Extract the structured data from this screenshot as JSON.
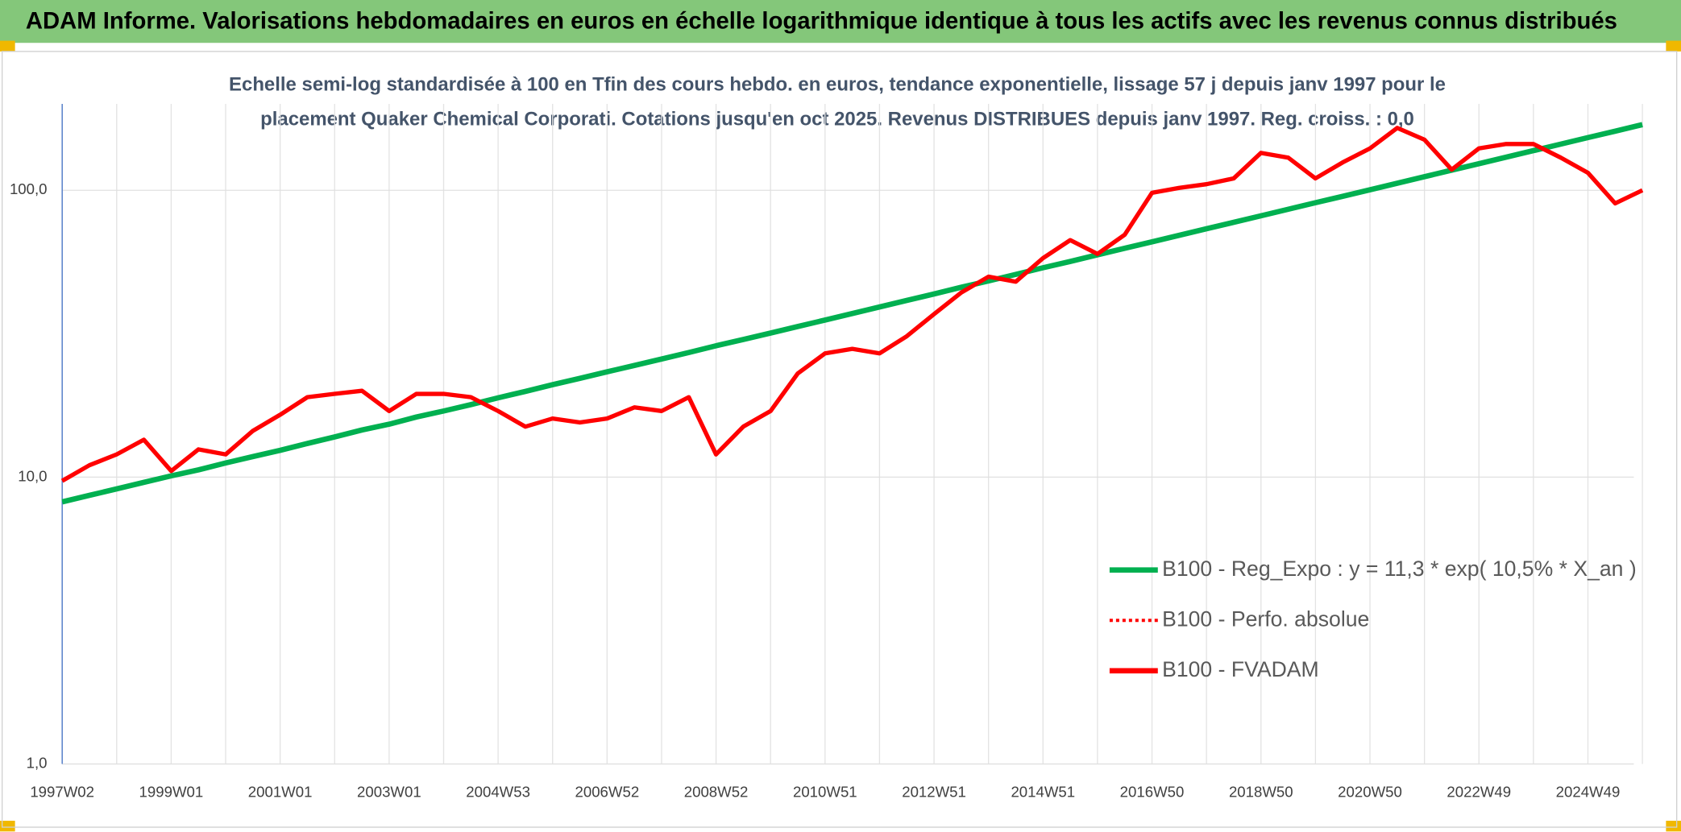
{
  "header": {
    "title": "ADAM Informe. Valorisations hebdomadaires en euros en échelle logarithmique identique à tous les actifs avec les revenus connus distribués"
  },
  "chart_data": {
    "type": "line",
    "subtitle": [
      "Echelle semi-log standardisée à 100 en Tfin des cours hebdo. en euros, tendance exponentielle, lissage 57 j depuis janv 1997 pour le",
      "placement Quaker Chemical Corporati. Cotations jusqu'en oct 2025. Revenus DISTRIBUES depuis janv 1997. Reg. croiss. : 0,0"
    ],
    "categories": [
      "1997W02",
      null,
      null,
      null,
      "1999W01",
      null,
      null,
      null,
      "2001W01",
      null,
      null,
      null,
      "2003W01",
      null,
      null,
      null,
      "2004W53",
      null,
      null,
      null,
      "2006W52",
      null,
      null,
      null,
      "2008W52",
      null,
      null,
      null,
      "2010W51",
      null,
      null,
      null,
      "2012W51",
      null,
      null,
      null,
      "2014W51",
      null,
      null,
      null,
      "2016W50",
      null,
      null,
      null,
      "2018W50",
      null,
      null,
      null,
      "2020W50",
      null,
      null,
      null,
      "2022W49",
      null,
      null,
      null,
      "2024W49",
      null,
      null
    ],
    "yscale": "log",
    "ylim": [
      1,
      200
    ],
    "yticks": [
      {
        "value": 1,
        "label": "1,0"
      },
      {
        "value": 10,
        "label": "10,0"
      },
      {
        "value": 100,
        "label": "100,0"
      }
    ],
    "grid": true,
    "legend": "right",
    "series": [
      {
        "name": "B100 - Reg_Expo : y = 11,3 * exp( 10,5% *  X_an )",
        "color": "#00b050",
        "style": "solid",
        "values": [
          8.2,
          8.64,
          9.1,
          9.59,
          10.1,
          10.6,
          11.2,
          11.8,
          12.4,
          13.1,
          13.8,
          14.6,
          15.3,
          16.2,
          17.0,
          17.9,
          18.9,
          19.9,
          21.0,
          22.1,
          23.3,
          24.5,
          25.8,
          27.2,
          28.7,
          30.2,
          31.8,
          33.5,
          35.3,
          37.2,
          39.2,
          41.3,
          43.5,
          45.9,
          48.3,
          50.9,
          53.7,
          56.5,
          59.6,
          62.8,
          66.1,
          69.7,
          73.4,
          77.3,
          81.5,
          85.9,
          90.5,
          95.3,
          100.4,
          105.8,
          111.5,
          117.5,
          123.8,
          130.4,
          137.4,
          144.8,
          152.6,
          160.8,
          169.4
        ]
      },
      {
        "name": "B100 - Perfo. absolue",
        "color": "#ff0000",
        "style": "dotted",
        "values": [
          9.7,
          11,
          12,
          13.5,
          10.5,
          12.5,
          12,
          14.5,
          16.5,
          19,
          19.5,
          20,
          17,
          19.5,
          19.5,
          19,
          17,
          15,
          16,
          15.5,
          16,
          17.5,
          17,
          19,
          12,
          15,
          17,
          23,
          27,
          28,
          27,
          31,
          37,
          44,
          50,
          48,
          58,
          67,
          60,
          70,
          98,
          102,
          105,
          110,
          135,
          130,
          110,
          125,
          140,
          165,
          150,
          118,
          140,
          145,
          145,
          130,
          115,
          90,
          100
        ]
      },
      {
        "name": "B100 - FVADAM",
        "color": "#ff0000",
        "style": "solid",
        "values": [
          9.7,
          11,
          12,
          13.5,
          10.5,
          12.5,
          12,
          14.5,
          16.5,
          19,
          19.5,
          20,
          17,
          19.5,
          19.5,
          19,
          17,
          15,
          16,
          15.5,
          16,
          17.5,
          17,
          19,
          12,
          15,
          17,
          23,
          27,
          28,
          27,
          31,
          37,
          44,
          50,
          48,
          58,
          67,
          60,
          70,
          98,
          102,
          105,
          110,
          135,
          130,
          110,
          125,
          140,
          165,
          150,
          118,
          140,
          145,
          145,
          130,
          115,
          90,
          100
        ]
      }
    ]
  }
}
